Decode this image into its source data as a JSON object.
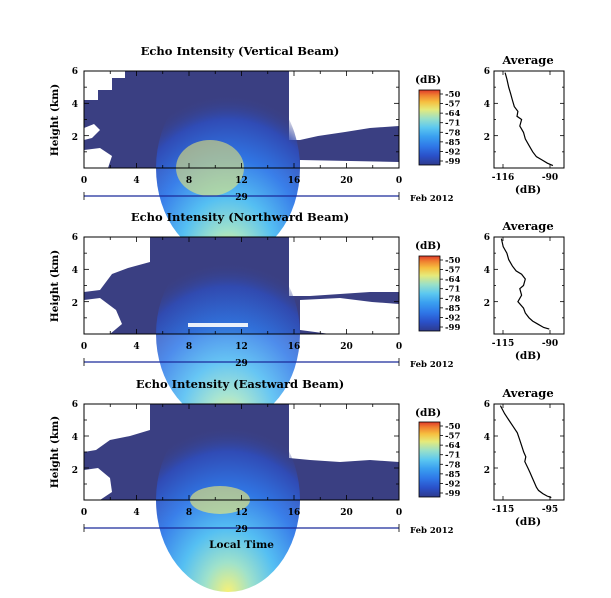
{
  "figure": {
    "date_label": "Feb 2012",
    "day_label": "29",
    "xlabel_bottom": "Local Time"
  },
  "colorbar": {
    "label": "(dB)",
    "ticks": [
      "-50",
      "-57",
      "-64",
      "-71",
      "-78",
      "-85",
      "-92",
      "-99"
    ]
  },
  "colors": {
    "background": "#3a3f82",
    "levels": [
      "#2e3a8c",
      "#2a50c8",
      "#2f78e8",
      "#3aa0f0",
      "#5cc8f0",
      "#9ae0c8",
      "#e6ea7a",
      "#f6c040",
      "#f08030",
      "#e03a2a"
    ],
    "profile_line": "#000000",
    "axis_blue": "#1a2a9a"
  },
  "chart_data": [
    {
      "id": "vertical",
      "type": "heatmap",
      "title": "Echo Intensity (Vertical Beam)",
      "ylabel": "Height (km)",
      "x_ticks": [
        "0",
        "4",
        "8",
        "12",
        "16",
        "20",
        "0"
      ],
      "y_ticks": [
        "6",
        "4",
        "2"
      ],
      "xlim_hours": [
        0,
        24
      ],
      "ylim_km": [
        0,
        6
      ],
      "clim_db": [
        -99,
        -50
      ],
      "intensity_core": {
        "start_hour": 7.5,
        "end_hour": 16.5,
        "peak_hour": 10.5,
        "peak_db": -64
      }
    },
    {
      "id": "northward",
      "type": "heatmap",
      "title": "Echo Intensity (Northward Beam)",
      "ylabel": "Height (km)",
      "x_ticks": [
        "0",
        "4",
        "8",
        "12",
        "16",
        "20",
        "0"
      ],
      "y_ticks": [
        "6",
        "4",
        "2"
      ],
      "xlim_hours": [
        0,
        24
      ],
      "ylim_km": [
        0,
        6
      ],
      "clim_db": [
        -99,
        -50
      ],
      "intensity_core": {
        "start_hour": 7.5,
        "end_hour": 16.5,
        "peak_hour": 10.5,
        "peak_db": -71
      }
    },
    {
      "id": "eastward",
      "type": "heatmap",
      "title": "Echo Intensity (Eastward Beam)",
      "ylabel": "Height (km)",
      "x_ticks": [
        "0",
        "4",
        "8",
        "12",
        "16",
        "20",
        "0"
      ],
      "y_ticks": [
        "6",
        "4",
        "2"
      ],
      "xlim_hours": [
        0,
        24
      ],
      "ylim_km": [
        0,
        6
      ],
      "clim_db": [
        -99,
        -50
      ],
      "intensity_core": {
        "start_hour": 7.5,
        "end_hour": 16.5,
        "peak_hour": 10.5,
        "peak_db": -64
      }
    },
    {
      "id": "average-vertical",
      "type": "line",
      "title": "Average",
      "xlabel": "(dB)",
      "x_ticks": [
        "-116",
        "-90"
      ],
      "y_ticks": [
        "6",
        "4",
        "2"
      ],
      "xlim": [
        -121,
        -83
      ],
      "ylim": [
        0,
        6
      ],
      "x": [
        -115,
        -114,
        -113,
        -112,
        -111,
        -110,
        -108,
        -108.5,
        -106,
        -107,
        -105,
        -104,
        -102,
        -100,
        -98,
        -95,
        -92,
        -89
      ],
      "y": [
        5.9,
        5.5,
        5.0,
        4.6,
        4.2,
        3.8,
        3.5,
        3.2,
        3.0,
        2.6,
        2.2,
        1.8,
        1.4,
        1.0,
        0.7,
        0.5,
        0.3,
        0.15
      ]
    },
    {
      "id": "average-northward",
      "type": "line",
      "title": "Average",
      "xlabel": "(dB)",
      "x_ticks": [
        "-115",
        "-90"
      ],
      "y_ticks": [
        "6",
        "4",
        "2"
      ],
      "xlim": [
        -121,
        -83
      ],
      "ylim": [
        0,
        6
      ],
      "x": [
        -117,
        -116,
        -114,
        -113,
        -111,
        -109,
        -106,
        -104,
        -105,
        -107,
        -106,
        -108,
        -105,
        -104,
        -102,
        -100,
        -97,
        -94,
        -91
      ],
      "y": [
        5.9,
        5.4,
        5.0,
        4.6,
        4.2,
        3.9,
        3.7,
        3.4,
        3.0,
        2.8,
        2.4,
        2.0,
        1.6,
        1.3,
        1.0,
        0.8,
        0.6,
        0.4,
        0.3
      ]
    },
    {
      "id": "average-eastward",
      "type": "line",
      "title": "Average",
      "xlabel": "(dB)",
      "x_ticks": [
        "-115",
        "-95"
      ],
      "y_ticks": [
        "6",
        "4",
        "2"
      ],
      "xlim": [
        -121,
        -88
      ],
      "ylim": [
        0,
        6
      ],
      "x": [
        -118,
        -116,
        -114,
        -112,
        -110,
        -109,
        -108,
        -107,
        -106,
        -106.5,
        -105,
        -104,
        -103,
        -102,
        -101,
        -100,
        -98,
        -96,
        -94
      ],
      "y": [
        5.9,
        5.4,
        5.0,
        4.6,
        4.2,
        3.8,
        3.4,
        3.0,
        2.7,
        2.4,
        2.0,
        1.7,
        1.4,
        1.1,
        0.8,
        0.6,
        0.4,
        0.25,
        0.15
      ]
    }
  ]
}
